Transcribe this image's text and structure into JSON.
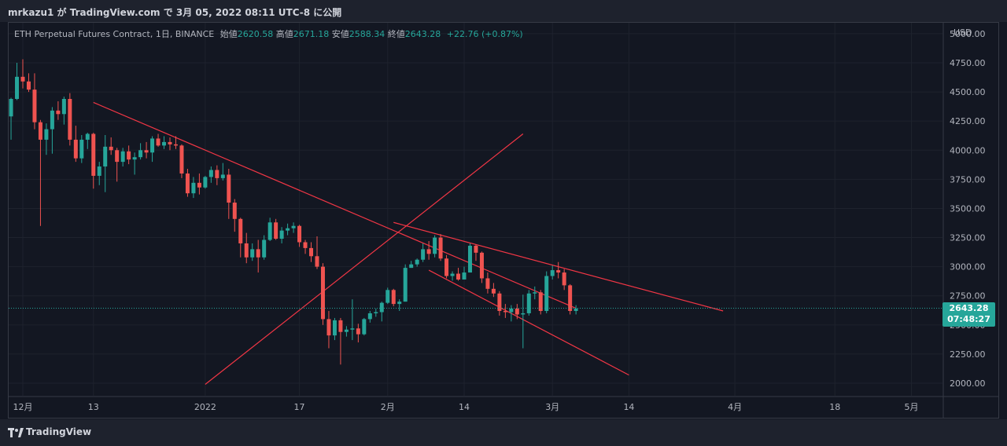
{
  "header": {
    "caption": "mrkazu1 が TradingView.com で 3月 05, 2022 08:11 UTC-8 に公開"
  },
  "legend": {
    "symbol": "ETH Perpetual Futures Contract, 1日, BINANCE",
    "open_label": "始値",
    "open": "2620.58",
    "high_label": "高値",
    "high": "2671.18",
    "low_label": "安値",
    "low": "2588.34",
    "close_label": "終値",
    "close": "2643.28",
    "change": "+22.76 (+0.87%)"
  },
  "currency": "USD",
  "price_badge": {
    "price": "2643.28",
    "countdown": "07:48:27"
  },
  "footer": {
    "brand": "TradingView"
  },
  "colors": {
    "up": "#26a69a",
    "down": "#ef5350",
    "trendline": "#f23645"
  },
  "chart_data": {
    "type": "candlestick",
    "y_ticks": [
      "2000.00",
      "2250.00",
      "2500.00",
      "2750.00",
      "3000.00",
      "3250.00",
      "3500.00",
      "3750.00",
      "4000.00",
      "4250.00",
      "4500.00",
      "4750.00",
      "5000.00"
    ],
    "ylim": [
      1900,
      5050
    ],
    "x_ticks": [
      {
        "label": "12月",
        "date": "2021-12-01"
      },
      {
        "label": "13",
        "date": "2021-12-13"
      },
      {
        "label": "2022",
        "date": "2022-01-01"
      },
      {
        "label": "17",
        "date": "2022-01-17"
      },
      {
        "label": "2月",
        "date": "2022-02-01"
      },
      {
        "label": "14",
        "date": "2022-02-14"
      },
      {
        "label": "3月",
        "date": "2022-03-01"
      },
      {
        "label": "14",
        "date": "2022-03-14"
      },
      {
        "label": "4月",
        "date": "2022-04-01"
      },
      {
        "label": "18",
        "date": "2022-04-18"
      },
      {
        "label": "5月",
        "date": "2022-05-01"
      }
    ],
    "current_price": 2643.28,
    "candles": [
      [
        "2021-11-29",
        4290,
        4450,
        4090,
        4440
      ],
      [
        "2021-11-30",
        4440,
        4750,
        4430,
        4630
      ],
      [
        "2021-12-01",
        4630,
        4780,
        4530,
        4590
      ],
      [
        "2021-12-02",
        4590,
        4660,
        4500,
        4520
      ],
      [
        "2021-12-03",
        4520,
        4660,
        4180,
        4240
      ],
      [
        "2021-12-04",
        4240,
        4260,
        3350,
        4090
      ],
      [
        "2021-12-05",
        4090,
        4230,
        3960,
        4180
      ],
      [
        "2021-12-06",
        4180,
        4370,
        3970,
        4340
      ],
      [
        "2021-12-07",
        4340,
        4420,
        4260,
        4310
      ],
      [
        "2021-12-08",
        4310,
        4460,
        4220,
        4440
      ],
      [
        "2021-12-09",
        4440,
        4490,
        4040,
        4090
      ],
      [
        "2021-12-10",
        4090,
        4210,
        3900,
        3930
      ],
      [
        "2021-12-11",
        3930,
        4130,
        3890,
        4090
      ],
      [
        "2021-12-12",
        4090,
        4150,
        4010,
        4140
      ],
      [
        "2021-12-13",
        4140,
        4150,
        3670,
        3780
      ],
      [
        "2021-12-14",
        3780,
        3900,
        3700,
        3860
      ],
      [
        "2021-12-15",
        3860,
        4130,
        3640,
        4030
      ],
      [
        "2021-12-16",
        4030,
        4110,
        3960,
        4000
      ],
      [
        "2021-12-17",
        4000,
        4020,
        3730,
        3900
      ],
      [
        "2021-12-18",
        3900,
        4020,
        3860,
        3990
      ],
      [
        "2021-12-19",
        3990,
        4040,
        3880,
        3920
      ],
      [
        "2021-12-20",
        3920,
        3980,
        3790,
        3940
      ],
      [
        "2021-12-21",
        3940,
        4060,
        3920,
        4000
      ],
      [
        "2021-12-22",
        4000,
        4070,
        3930,
        3980
      ],
      [
        "2021-12-23",
        3980,
        4120,
        3900,
        4100
      ],
      [
        "2021-12-24",
        4100,
        4140,
        4030,
        4040
      ],
      [
        "2021-12-25",
        4040,
        4120,
        4010,
        4070
      ],
      [
        "2021-12-26",
        4070,
        4110,
        4000,
        4050
      ],
      [
        "2021-12-27",
        4050,
        4120,
        4010,
        4040
      ],
      [
        "2021-12-28",
        4040,
        4050,
        3760,
        3800
      ],
      [
        "2021-12-29",
        3800,
        3840,
        3600,
        3630
      ],
      [
        "2021-12-30",
        3630,
        3770,
        3590,
        3720
      ],
      [
        "2021-12-31",
        3720,
        3800,
        3620,
        3680
      ],
      [
        "2022-01-01",
        3680,
        3780,
        3670,
        3770
      ],
      [
        "2022-01-02",
        3770,
        3860,
        3720,
        3830
      ],
      [
        "2022-01-03",
        3830,
        3870,
        3700,
        3760
      ],
      [
        "2022-01-04",
        3760,
        3890,
        3740,
        3790
      ],
      [
        "2022-01-05",
        3790,
        3840,
        3410,
        3550
      ],
      [
        "2022-01-06",
        3550,
        3580,
        3300,
        3410
      ],
      [
        "2022-01-07",
        3410,
        3420,
        3080,
        3200
      ],
      [
        "2022-01-08",
        3200,
        3290,
        3030,
        3080
      ],
      [
        "2022-01-09",
        3080,
        3200,
        3050,
        3150
      ],
      [
        "2022-01-10",
        3150,
        3230,
        2950,
        3080
      ],
      [
        "2022-01-11",
        3080,
        3270,
        3060,
        3230
      ],
      [
        "2022-01-12",
        3230,
        3420,
        3220,
        3380
      ],
      [
        "2022-01-13",
        3380,
        3410,
        3230,
        3240
      ],
      [
        "2022-01-14",
        3240,
        3340,
        3200,
        3310
      ],
      [
        "2022-01-15",
        3310,
        3370,
        3270,
        3330
      ],
      [
        "2022-01-16",
        3330,
        3380,
        3290,
        3350
      ],
      [
        "2022-01-17",
        3350,
        3360,
        3170,
        3210
      ],
      [
        "2022-01-18",
        3210,
        3230,
        3110,
        3160
      ],
      [
        "2022-01-19",
        3160,
        3210,
        3040,
        3090
      ],
      [
        "2022-01-20",
        3090,
        3260,
        2980,
        3000
      ],
      [
        "2022-01-21",
        3000,
        3030,
        2500,
        2550
      ],
      [
        "2022-01-22",
        2550,
        2620,
        2300,
        2410
      ],
      [
        "2022-01-23",
        2410,
        2560,
        2370,
        2540
      ],
      [
        "2022-01-24",
        2540,
        2560,
        2160,
        2440
      ],
      [
        "2022-01-25",
        2440,
        2490,
        2400,
        2460
      ],
      [
        "2022-01-26",
        2460,
        2720,
        2370,
        2470
      ],
      [
        "2022-01-27",
        2470,
        2510,
        2350,
        2420
      ],
      [
        "2022-01-28",
        2420,
        2560,
        2410,
        2550
      ],
      [
        "2022-01-29",
        2550,
        2620,
        2520,
        2600
      ],
      [
        "2022-01-30",
        2600,
        2640,
        2570,
        2610
      ],
      [
        "2022-01-31",
        2610,
        2700,
        2530,
        2690
      ],
      [
        "2022-02-01",
        2690,
        2820,
        2680,
        2800
      ],
      [
        "2022-02-02",
        2800,
        2810,
        2660,
        2680
      ],
      [
        "2022-02-03",
        2680,
        2720,
        2620,
        2700
      ],
      [
        "2022-02-04",
        2700,
        3020,
        2700,
        2990
      ],
      [
        "2022-02-05",
        2990,
        3050,
        2990,
        3020
      ],
      [
        "2022-02-06",
        3020,
        3070,
        3000,
        3060
      ],
      [
        "2022-02-07",
        3060,
        3200,
        3040,
        3150
      ],
      [
        "2022-02-08",
        3150,
        3220,
        3060,
        3110
      ],
      [
        "2022-02-09",
        3110,
        3270,
        3080,
        3250
      ],
      [
        "2022-02-10",
        3250,
        3280,
        3050,
        3070
      ],
      [
        "2022-02-11",
        3070,
        3100,
        2900,
        2920
      ],
      [
        "2022-02-12",
        2920,
        2960,
        2880,
        2940
      ],
      [
        "2022-02-13",
        2940,
        2990,
        2880,
        2890
      ],
      [
        "2022-02-14",
        2890,
        3000,
        2890,
        2950
      ],
      [
        "2022-02-15",
        2950,
        3200,
        2950,
        3180
      ],
      [
        "2022-02-16",
        3180,
        3190,
        3050,
        3120
      ],
      [
        "2022-02-17",
        3120,
        3130,
        2860,
        2900
      ],
      [
        "2022-02-18",
        2900,
        2950,
        2770,
        2810
      ],
      [
        "2022-02-19",
        2810,
        2860,
        2740,
        2770
      ],
      [
        "2022-02-20",
        2770,
        2790,
        2580,
        2620
      ],
      [
        "2022-02-21",
        2620,
        2680,
        2560,
        2610
      ],
      [
        "2022-02-22",
        2610,
        2670,
        2530,
        2640
      ],
      [
        "2022-02-23",
        2640,
        2680,
        2550,
        2590
      ],
      [
        "2022-02-24",
        2590,
        2760,
        2300,
        2600
      ],
      [
        "2022-02-25",
        2600,
        2800,
        2580,
        2770
      ],
      [
        "2022-02-26",
        2770,
        2830,
        2720,
        2780
      ],
      [
        "2022-02-27",
        2780,
        2800,
        2590,
        2620
      ],
      [
        "2022-02-28",
        2620,
        2960,
        2600,
        2920
      ],
      [
        "2022-03-01",
        2920,
        3010,
        2890,
        2970
      ],
      [
        "2022-03-02",
        2970,
        3040,
        2900,
        2950
      ],
      [
        "2022-03-03",
        2950,
        2980,
        2800,
        2840
      ],
      [
        "2022-03-04",
        2840,
        2850,
        2590,
        2620
      ],
      [
        "2022-03-05",
        2620,
        2670,
        2590,
        2640
      ]
    ],
    "trendlines": [
      {
        "name": "upper-descending",
        "from": [
          "2021-12-13",
          4410
        ],
        "to": [
          "2022-03-05",
          2643
        ]
      },
      {
        "name": "ascending",
        "from": [
          "2022-01-01",
          1990
        ],
        "to": [
          "2022-02-24",
          4140
        ]
      },
      {
        "name": "channel-top",
        "from": [
          "2022-02-02",
          3380
        ],
        "to": [
          "2022-03-30",
          2620
        ]
      },
      {
        "name": "channel-bottom",
        "from": [
          "2022-02-08",
          2970
        ],
        "to": [
          "2022-03-14",
          2070
        ]
      }
    ]
  }
}
